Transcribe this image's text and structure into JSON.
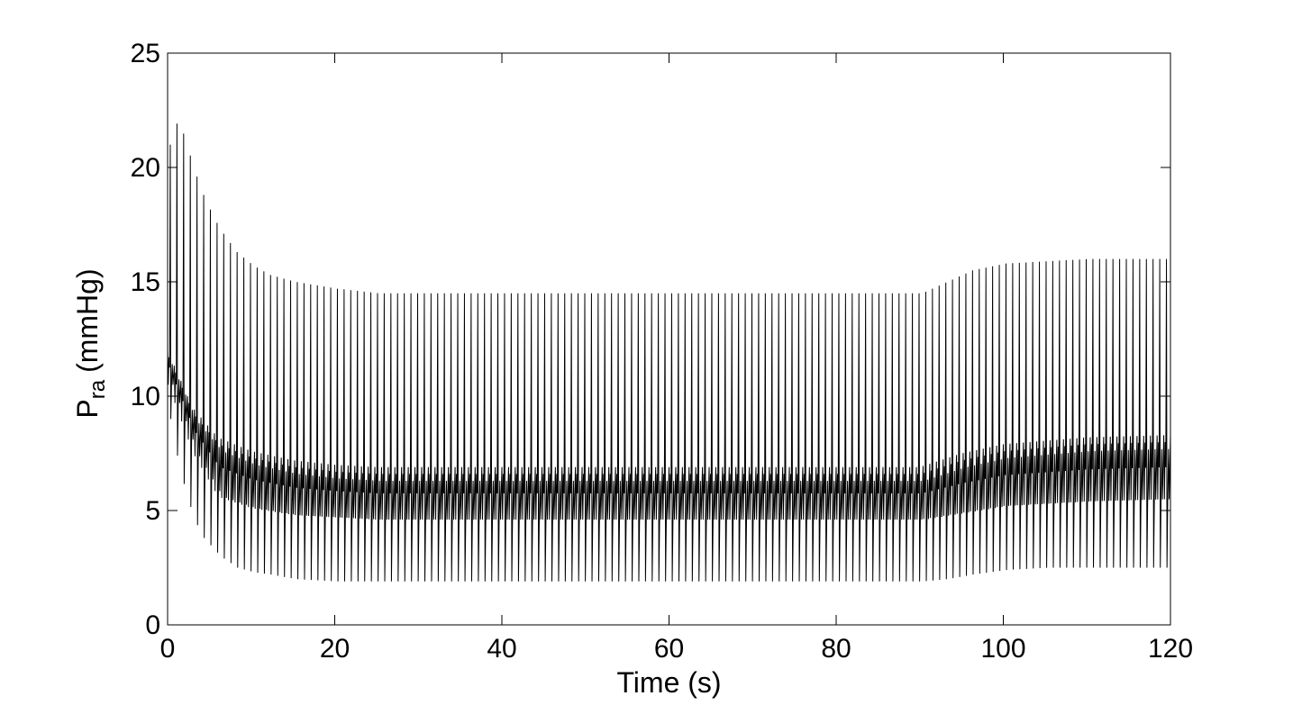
{
  "chart_data": {
    "type": "line",
    "title": "",
    "xlabel": "Time (s)",
    "ylabel": {
      "main": "P",
      "subscript": "ra",
      "unit": "(mmHg)"
    },
    "xlim": [
      0,
      120
    ],
    "ylim": [
      0,
      25
    ],
    "x_ticks": [
      0,
      20,
      40,
      60,
      80,
      100,
      120
    ],
    "y_ticks": [
      0,
      5,
      10,
      15,
      20,
      25
    ],
    "grid": false,
    "legend": "none",
    "line_color": "#000000",
    "series": [
      {
        "signal": "oscillating pressure waveform",
        "cycle_period_s": 0.8,
        "upper_envelope": {
          "x": [
            0,
            0.5,
            1,
            2,
            3,
            4,
            5,
            6,
            8,
            10,
            12,
            15,
            20,
            25,
            90,
            93,
            96,
            100,
            105,
            110,
            120
          ],
          "y": [
            21.0,
            21.5,
            22.2,
            21.0,
            19.8,
            18.8,
            18.0,
            17.3,
            16.3,
            15.7,
            15.3,
            15.0,
            14.7,
            14.5,
            14.5,
            15.0,
            15.5,
            15.8,
            15.9,
            16.0,
            16.0
          ]
        },
        "lower_envelope": {
          "x": [
            0,
            1,
            2,
            3,
            4,
            6,
            8,
            10,
            12,
            15,
            20,
            25,
            90,
            93,
            96,
            100,
            105,
            110,
            120
          ],
          "y": [
            9.0,
            7.0,
            5.6,
            4.5,
            3.8,
            3.0,
            2.5,
            2.3,
            2.2,
            2.0,
            1.9,
            1.9,
            1.9,
            2.0,
            2.2,
            2.4,
            2.5,
            2.5,
            2.5
          ]
        },
        "inner_band_upper": {
          "x": [
            0,
            3,
            6,
            10,
            15,
            20,
            25,
            90,
            95,
            100,
            110,
            120
          ],
          "y": [
            12.0,
            9.5,
            8.2,
            7.6,
            7.2,
            7.0,
            6.9,
            6.9,
            7.5,
            7.9,
            8.2,
            8.3
          ]
        },
        "inner_band_lower": {
          "x": [
            0,
            3,
            6,
            10,
            15,
            20,
            25,
            90,
            95,
            100,
            110,
            120
          ],
          "y": [
            10.5,
            7.5,
            5.6,
            5.1,
            4.8,
            4.7,
            4.6,
            4.6,
            4.9,
            5.2,
            5.4,
            5.5
          ]
        }
      }
    ]
  }
}
